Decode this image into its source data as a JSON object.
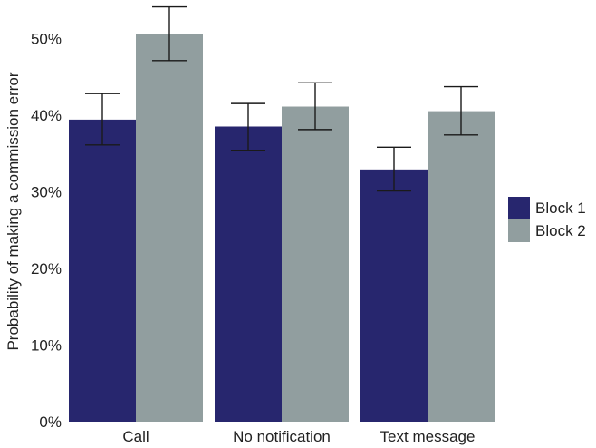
{
  "chart_data": {
    "type": "bar",
    "ylabel": "Probability of making a commission error",
    "ylim": [
      0,
      0.55
    ],
    "yticks": [
      0,
      0.1,
      0.2,
      0.3,
      0.4,
      0.5
    ],
    "ytick_labels": [
      "0%",
      "10%",
      "20%",
      "30%",
      "40%",
      "50%"
    ],
    "categories": [
      "Call",
      "No notification",
      "Text message"
    ],
    "series": [
      {
        "name": "Block 1",
        "color": "#27266e",
        "values": [
          0.394,
          0.385,
          0.329
        ],
        "err_low": [
          0.361,
          0.354,
          0.301
        ],
        "err_high": [
          0.428,
          0.415,
          0.358
        ]
      },
      {
        "name": "Block 2",
        "color": "#919e9f",
        "values": [
          0.506,
          0.411,
          0.405
        ],
        "err_low": [
          0.471,
          0.381,
          0.374
        ],
        "err_high": [
          0.541,
          0.442,
          0.437
        ]
      }
    ],
    "legend_position": "right",
    "grid": false
  }
}
